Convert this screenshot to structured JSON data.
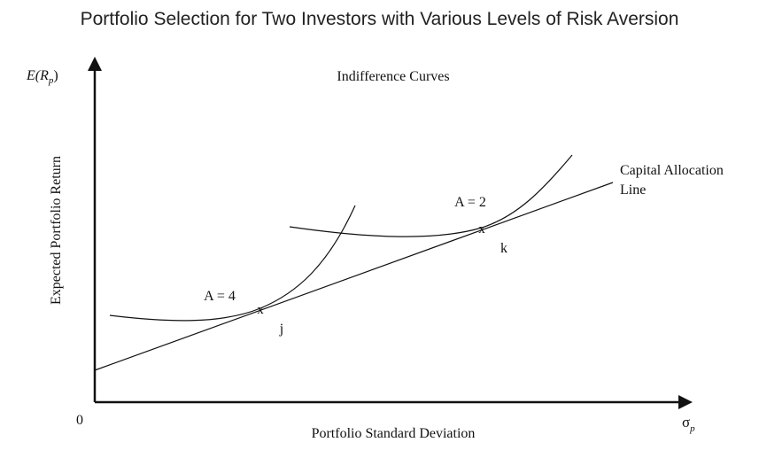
{
  "title": "Portfolio Selection for Two Investors with Various Levels of Risk Aversion",
  "chart_data": {
    "type": "line",
    "title": "Portfolio Selection for Two Investors with Various Levels of Risk Aversion",
    "subtitle": "Indifference Curves",
    "xlabel": "Portfolio Standard Deviation",
    "ylabel": "Expected Portfolio Return",
    "x_axis_symbol": "σ",
    "x_axis_symbol_sub": "p",
    "y_axis_symbol": "E(R",
    "y_axis_symbol_sub": "p",
    "y_axis_symbol_close": ")",
    "origin_label": "0",
    "grid": false,
    "lines": {
      "cal": {
        "label_line1": "Capital Allocation",
        "label_line2": "Line"
      },
      "a4": {
        "label": "A = 4"
      },
      "a2": {
        "label": "A = 2"
      }
    },
    "points": [
      {
        "marker": "x",
        "label": "j"
      },
      {
        "marker": "x",
        "label": "k"
      }
    ]
  }
}
